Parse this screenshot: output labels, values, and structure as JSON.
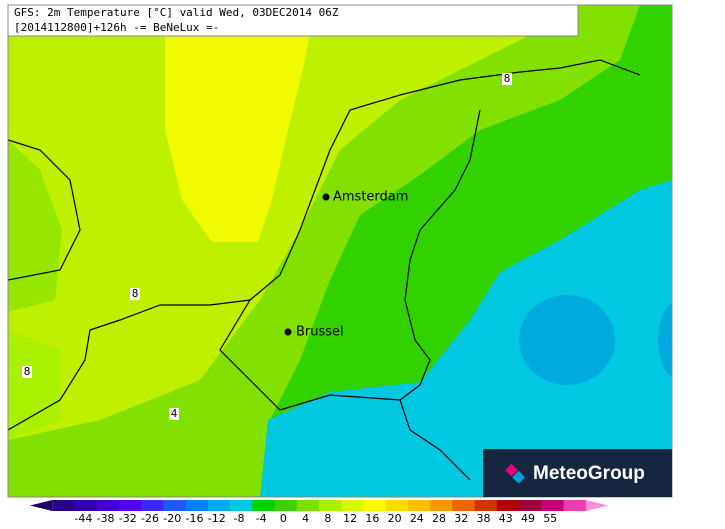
{
  "header": {
    "title": "GFS: 2m Temperature [°C] valid Wed, 03DEC2014 06Z",
    "subtitle": "[2014112800]+126h -= BeNeLux =-"
  },
  "cities": [
    {
      "label": "Amsterdam"
    },
    {
      "label": "Brussel"
    }
  ],
  "contour_labels": [
    "8",
    "8",
    "8",
    "4"
  ],
  "logo": {
    "text": "MeteoGroup"
  },
  "colorbar": {
    "ticks": [
      -44,
      -38,
      -32,
      -26,
      -20,
      -16,
      -12,
      -8,
      -4,
      0,
      4,
      8,
      12,
      16,
      20,
      24,
      28,
      32,
      38,
      43,
      49,
      55
    ],
    "colors": [
      "#1e0064",
      "#28008c",
      "#3200b4",
      "#4600d2",
      "#5a00f0",
      "#3c28ff",
      "#1e5aff",
      "#0082ff",
      "#00aaf0",
      "#00c8e0",
      "#00d200",
      "#3cd200",
      "#78e100",
      "#aaf000",
      "#d2fa00",
      "#fafa00",
      "#ffdc00",
      "#ffbe00",
      "#ff9600",
      "#f06400",
      "#d23200",
      "#b40000",
      "#a0003c",
      "#c80078",
      "#f03cb4",
      "#ff8cdc"
    ]
  }
}
